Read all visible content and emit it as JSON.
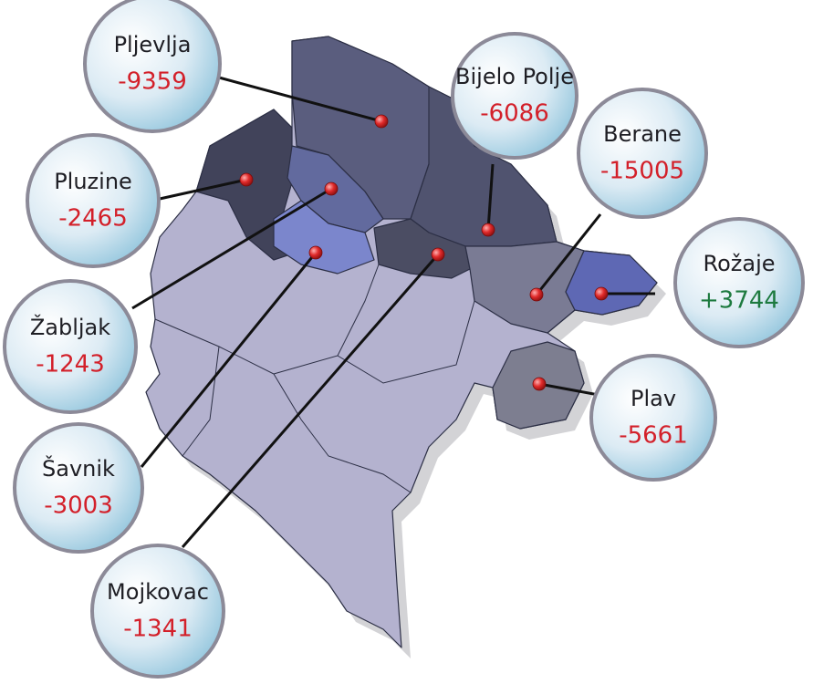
{
  "municipalities": [
    {
      "name": "Pljevlja",
      "change": "-9359"
    },
    {
      "name": "Bijelo Polje",
      "change": "-6086"
    },
    {
      "name": "Berane",
      "change": "-15005"
    },
    {
      "name": "Rožaje",
      "change": "+3744"
    },
    {
      "name": "Plav",
      "change": "-5661"
    },
    {
      "name": "Pluzine",
      "change": "-2465"
    },
    {
      "name": "Žabljak",
      "change": "-1243"
    },
    {
      "name": "Šavnik",
      "change": "-3003"
    },
    {
      "name": "Mojkovac",
      "change": "-1341"
    }
  ]
}
